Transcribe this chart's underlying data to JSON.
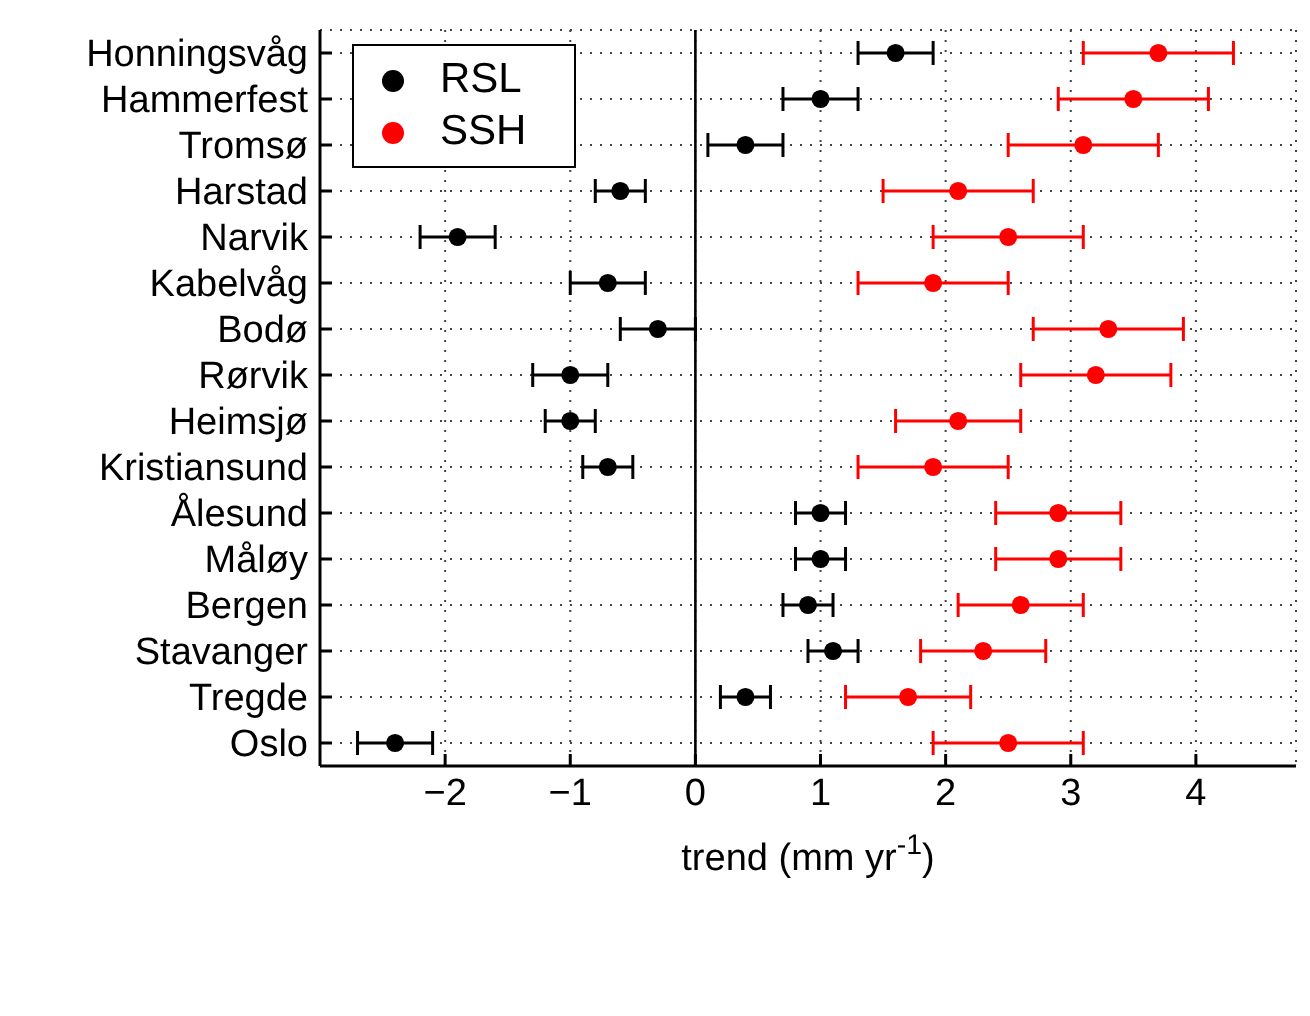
{
  "chart_data": {
    "type": "scatter",
    "orientation": "horizontal",
    "xlabel": "trend (mm yr$^{-1}$)",
    "categories": [
      "Honningsvåg",
      "Hammerfest",
      "Tromsø",
      "Harstad",
      "Narvik",
      "Kabelvåg",
      "Bodø",
      "Rørvik",
      "Heimsjø",
      "Kristiansund",
      "Ålesund",
      "Måløy",
      "Bergen",
      "Stavanger",
      "Tregde",
      "Oslo"
    ],
    "series": [
      {
        "name": "RSL",
        "color": "#000000",
        "values": [
          1.6,
          1.0,
          0.4,
          -0.6,
          -1.9,
          -0.7,
          -0.3,
          -1.0,
          -1.0,
          -0.7,
          1.0,
          1.0,
          0.9,
          1.1,
          0.4,
          -2.4
        ],
        "errors": [
          0.3,
          0.3,
          0.3,
          0.2,
          0.3,
          0.3,
          0.3,
          0.3,
          0.2,
          0.2,
          0.2,
          0.2,
          0.2,
          0.2,
          0.2,
          0.3
        ]
      },
      {
        "name": "SSH",
        "color": "#ff0000",
        "values": [
          3.7,
          3.5,
          3.1,
          2.1,
          2.5,
          1.9,
          3.3,
          3.2,
          2.1,
          1.9,
          2.9,
          2.9,
          2.6,
          2.3,
          1.7,
          2.5
        ],
        "errors": [
          0.6,
          0.6,
          0.6,
          0.6,
          0.6,
          0.6,
          0.6,
          0.6,
          0.5,
          0.6,
          0.5,
          0.5,
          0.5,
          0.5,
          0.5,
          0.6
        ]
      }
    ],
    "xlim": [
      -3,
      4.8
    ],
    "xticks": [
      {
        "value": -2,
        "label": "−2"
      },
      {
        "value": -1,
        "label": "−1"
      },
      0,
      1,
      2,
      3,
      4
    ],
    "ref_lines": [
      {
        "axis": "x",
        "value": 0,
        "color": "#000000",
        "line_style": "solid"
      }
    ],
    "grid": true,
    "legend": "top left",
    "marker": "circle"
  }
}
